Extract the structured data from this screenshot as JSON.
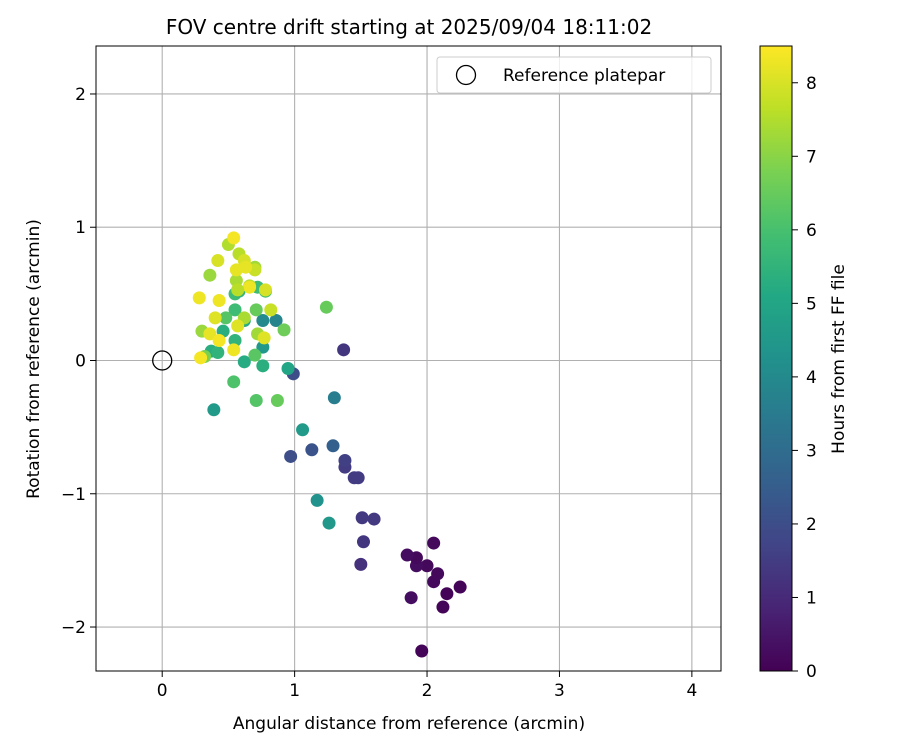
{
  "chart_data": {
    "type": "scatter",
    "title": "FOV centre drift starting at 2025/09/04 18:11:02",
    "xlabel": "Angular distance from reference (arcmin)",
    "ylabel": "Rotation from reference (arcmin)",
    "xlim": [
      -0.5,
      4.22
    ],
    "ylim": [
      -2.33,
      2.36
    ],
    "xticks": [
      0,
      1,
      2,
      3,
      4
    ],
    "yticks": [
      -2,
      -1,
      0,
      1,
      2
    ],
    "xtick_labels": [
      "0",
      "1",
      "2",
      "3",
      "4"
    ],
    "ytick_labels": [
      "−2",
      "−1",
      "0",
      "1",
      "2"
    ],
    "grid": true,
    "legend": {
      "position": "top-right",
      "label": "Reference platepar"
    },
    "reference_point": {
      "x": 0,
      "y": 0
    },
    "colorbar": {
      "label": "Hours from first FF file",
      "min": 0,
      "max": 8.5,
      "ticks": [
        0,
        1,
        2,
        3,
        4,
        5,
        6,
        7,
        8
      ],
      "tick_labels": [
        "0",
        "1",
        "2",
        "3",
        "4",
        "5",
        "6",
        "7",
        "8"
      ],
      "colormap": "viridis"
    },
    "points": [
      {
        "x": 1.96,
        "y": -2.18,
        "h": 0.1
      },
      {
        "x": 2.12,
        "y": -1.85,
        "h": 0.1
      },
      {
        "x": 2.15,
        "y": -1.75,
        "h": 0.1
      },
      {
        "x": 2.25,
        "y": -1.7,
        "h": 0.1
      },
      {
        "x": 2.05,
        "y": -1.66,
        "h": 0.2
      },
      {
        "x": 2.08,
        "y": -1.6,
        "h": 0.2
      },
      {
        "x": 2.0,
        "y": -1.54,
        "h": 0.2
      },
      {
        "x": 1.92,
        "y": -1.54,
        "h": 0.3
      },
      {
        "x": 1.92,
        "y": -1.48,
        "h": 0.2
      },
      {
        "x": 1.85,
        "y": -1.46,
        "h": 0.3
      },
      {
        "x": 2.05,
        "y": -1.37,
        "h": 0.2
      },
      {
        "x": 1.88,
        "y": -1.78,
        "h": 0.3
      },
      {
        "x": 1.5,
        "y": -1.53,
        "h": 1.2
      },
      {
        "x": 1.52,
        "y": -1.36,
        "h": 1.3
      },
      {
        "x": 1.51,
        "y": -1.18,
        "h": 1.4
      },
      {
        "x": 1.6,
        "y": -1.19,
        "h": 1.4
      },
      {
        "x": 1.45,
        "y": -0.88,
        "h": 1.5
      },
      {
        "x": 1.48,
        "y": -0.88,
        "h": 1.5
      },
      {
        "x": 1.38,
        "y": -0.8,
        "h": 1.5
      },
      {
        "x": 1.38,
        "y": -0.75,
        "h": 1.6
      },
      {
        "x": 1.37,
        "y": 0.08,
        "h": 1.3
      },
      {
        "x": 0.97,
        "y": -0.72,
        "h": 2.0
      },
      {
        "x": 1.13,
        "y": -0.67,
        "h": 2.2
      },
      {
        "x": 1.29,
        "y": -0.64,
        "h": 2.6
      },
      {
        "x": 0.99,
        "y": -0.1,
        "h": 2.0
      },
      {
        "x": 1.3,
        "y": -0.28,
        "h": 3.6
      },
      {
        "x": 1.17,
        "y": -1.05,
        "h": 4.3
      },
      {
        "x": 1.26,
        "y": -1.22,
        "h": 4.5
      },
      {
        "x": 1.06,
        "y": -0.52,
        "h": 4.6
      },
      {
        "x": 0.39,
        "y": -0.37,
        "h": 4.6
      },
      {
        "x": 0.95,
        "y": -0.06,
        "h": 5.0
      },
      {
        "x": 0.62,
        "y": -0.01,
        "h": 5.2
      },
      {
        "x": 0.76,
        "y": -0.04,
        "h": 5.3
      },
      {
        "x": 0.37,
        "y": 0.07,
        "h": 5.3
      },
      {
        "x": 0.42,
        "y": 0.06,
        "h": 5.5
      },
      {
        "x": 0.46,
        "y": 0.22,
        "h": 5.3
      },
      {
        "x": 0.55,
        "y": 0.15,
        "h": 5.5
      },
      {
        "x": 0.76,
        "y": 0.1,
        "h": 4.5
      },
      {
        "x": 0.76,
        "y": 0.3,
        "h": 4.0
      },
      {
        "x": 0.86,
        "y": 0.3,
        "h": 3.8
      },
      {
        "x": 0.62,
        "y": 0.3,
        "h": 5.2
      },
      {
        "x": 0.55,
        "y": 0.38,
        "h": 5.8
      },
      {
        "x": 0.55,
        "y": 0.5,
        "h": 5.8
      },
      {
        "x": 0.58,
        "y": 0.52,
        "h": 5.5
      },
      {
        "x": 0.72,
        "y": 0.55,
        "h": 5.8
      },
      {
        "x": 0.78,
        "y": 0.52,
        "h": 6.0
      },
      {
        "x": 0.54,
        "y": -0.16,
        "h": 6.1
      },
      {
        "x": 0.71,
        "y": -0.3,
        "h": 6.2
      },
      {
        "x": 0.87,
        "y": -0.3,
        "h": 6.5
      },
      {
        "x": 0.7,
        "y": 0.04,
        "h": 6.3
      },
      {
        "x": 0.48,
        "y": 0.32,
        "h": 6.2
      },
      {
        "x": 0.71,
        "y": 0.38,
        "h": 6.5
      },
      {
        "x": 0.92,
        "y": 0.23,
        "h": 6.6
      },
      {
        "x": 1.24,
        "y": 0.4,
        "h": 6.5
      },
      {
        "x": 0.32,
        "y": 0.03,
        "h": 6.8
      },
      {
        "x": 0.3,
        "y": 0.22,
        "h": 7.2
      },
      {
        "x": 0.36,
        "y": 0.64,
        "h": 7.2
      },
      {
        "x": 0.5,
        "y": 0.87,
        "h": 7.5
      },
      {
        "x": 0.72,
        "y": 0.2,
        "h": 7.3
      },
      {
        "x": 0.62,
        "y": 0.32,
        "h": 7.4
      },
      {
        "x": 0.66,
        "y": 0.56,
        "h": 7.6
      },
      {
        "x": 0.7,
        "y": 0.7,
        "h": 7.3
      },
      {
        "x": 0.56,
        "y": 0.6,
        "h": 7.4
      },
      {
        "x": 0.58,
        "y": 0.8,
        "h": 7.6
      },
      {
        "x": 0.7,
        "y": 0.68,
        "h": 7.8
      },
      {
        "x": 0.62,
        "y": 0.75,
        "h": 8.0
      },
      {
        "x": 0.56,
        "y": 0.68,
        "h": 8.2
      },
      {
        "x": 0.54,
        "y": 0.92,
        "h": 8.4
      },
      {
        "x": 0.42,
        "y": 0.75,
        "h": 8.0
      },
      {
        "x": 0.28,
        "y": 0.47,
        "h": 8.3
      },
      {
        "x": 0.43,
        "y": 0.45,
        "h": 8.3
      },
      {
        "x": 0.4,
        "y": 0.32,
        "h": 8.1
      },
      {
        "x": 0.36,
        "y": 0.2,
        "h": 8.2
      },
      {
        "x": 0.43,
        "y": 0.15,
        "h": 8.4
      },
      {
        "x": 0.29,
        "y": 0.02,
        "h": 8.4
      },
      {
        "x": 0.54,
        "y": 0.08,
        "h": 8.3
      },
      {
        "x": 0.57,
        "y": 0.26,
        "h": 8.1
      },
      {
        "x": 0.66,
        "y": 0.55,
        "h": 8.3
      },
      {
        "x": 0.78,
        "y": 0.53,
        "h": 8.0
      },
      {
        "x": 0.82,
        "y": 0.38,
        "h": 7.8
      },
      {
        "x": 0.77,
        "y": 0.17,
        "h": 8.1
      },
      {
        "x": 0.63,
        "y": 0.7,
        "h": 8.2
      },
      {
        "x": 0.57,
        "y": 0.53,
        "h": 7.6
      }
    ]
  }
}
